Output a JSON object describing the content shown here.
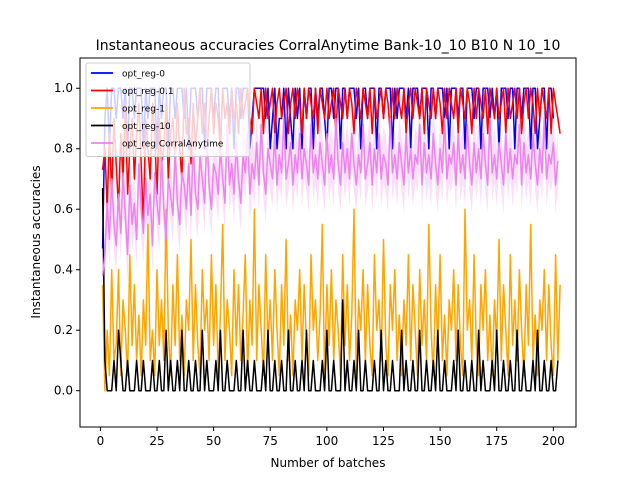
{
  "chart_data": {
    "type": "line",
    "title": "Instantaneous accuracies CorralAnytime Bank-10_10 B10 N 10_10",
    "xlabel": "Number of batches",
    "ylabel": "Instantaneous accuracies",
    "xlim": [
      -9,
      210
    ],
    "ylim": [
      -0.12,
      1.1
    ],
    "xticks": [
      0,
      25,
      50,
      75,
      100,
      125,
      150,
      175,
      200
    ],
    "yticks": [
      0.0,
      0.2,
      0.4,
      0.6,
      0.8,
      1.0
    ],
    "ytick_labels": [
      "0.0",
      "0.2",
      "0.4",
      "0.6",
      "0.8",
      "1.0"
    ],
    "grid": false,
    "legend_position": "top-left",
    "x_start": 1,
    "series": [
      {
        "name": "opt_reg-0",
        "color": "#0000ff",
        "values": [
          0.47,
          0.9,
          1.0,
          0.8,
          1.0,
          1.0,
          0.9,
          1.0,
          1.0,
          0.9,
          1.0,
          0.8,
          1.0,
          1.0,
          0.9,
          1.0,
          1.0,
          1.0,
          0.8,
          1.0,
          0.9,
          1.0,
          1.0,
          1.0,
          0.8,
          1.0,
          0.9,
          1.0,
          1.0,
          0.8,
          1.0,
          1.0,
          0.9,
          1.0,
          1.0,
          1.0,
          0.9,
          1.0,
          0.8,
          1.0,
          1.0,
          1.0,
          0.9,
          1.0,
          1.0,
          0.8,
          1.0,
          1.0,
          1.0,
          0.9,
          1.0,
          1.0,
          0.8,
          1.0,
          1.0,
          1.0,
          0.9,
          1.0,
          0.8,
          1.0,
          1.0,
          0.9,
          1.0,
          1.0,
          1.0,
          0.8,
          0.9,
          1.0,
          1.0,
          1.0,
          1.0,
          1.0,
          0.9,
          1.0,
          0.8,
          0.9,
          1.0,
          0.8,
          0.9,
          0.9,
          1.0,
          0.8,
          1.0,
          0.9,
          0.8,
          1.0,
          0.9,
          1.0,
          0.8,
          1.0,
          0.9,
          1.0,
          1.0,
          0.8,
          1.0,
          0.9,
          1.0,
          1.0,
          0.9,
          0.8,
          1.0,
          1.0,
          0.9,
          1.0,
          1.0,
          0.8,
          1.0,
          1.0,
          0.9,
          1.0,
          1.0,
          1.0,
          0.9,
          1.0,
          0.8,
          1.0,
          1.0,
          0.9,
          1.0,
          1.0,
          1.0,
          0.8,
          1.0,
          1.0,
          0.9,
          1.0,
          1.0,
          1.0,
          0.8,
          1.0,
          0.9,
          1.0,
          1.0,
          1.0,
          0.9,
          1.0,
          0.8,
          1.0,
          1.0,
          1.0,
          0.9,
          1.0,
          1.0,
          1.0,
          0.8,
          1.0,
          1.0,
          0.9,
          1.0,
          1.0,
          1.0,
          0.9,
          1.0,
          0.8,
          1.0,
          1.0,
          1.0,
          0.9,
          1.0,
          1.0,
          0.8,
          1.0,
          1.0,
          1.0,
          0.9,
          1.0,
          1.0,
          0.8,
          1.0,
          1.0,
          1.0,
          0.9,
          1.0,
          0.9,
          1.0,
          0.8,
          1.0,
          1.0,
          1.0,
          0.9,
          1.0,
          1.0,
          0.8,
          1.0,
          1.0,
          0.9,
          1.0,
          1.0,
          1.0,
          0.8,
          1.0,
          1.0,
          0.8,
          0.9,
          1.0,
          1.0,
          0.8,
          1.0,
          1.0,
          0.9
        ]
      },
      {
        "name": "opt_reg-0.1",
        "color": "#ff0000",
        "values": [
          0.73,
          0.8,
          0.6,
          0.85,
          0.65,
          0.9,
          0.75,
          0.6,
          0.85,
          0.7,
          0.95,
          0.65,
          0.8,
          0.9,
          0.7,
          0.85,
          0.95,
          0.75,
          0.55,
          0.9,
          0.8,
          0.7,
          0.95,
          0.85,
          0.65,
          0.9,
          0.75,
          0.8,
          0.95,
          0.7,
          0.85,
          0.9,
          0.75,
          0.95,
          0.8,
          0.7,
          1.0,
          0.85,
          0.9,
          0.75,
          0.95,
          0.8,
          0.9,
          1.0,
          0.85,
          0.95,
          0.8,
          0.9,
          1.0,
          0.85,
          0.95,
          0.9,
          0.8,
          1.0,
          0.9,
          0.95,
          0.85,
          1.0,
          0.9,
          0.95,
          0.85,
          1.0,
          0.9,
          0.95,
          1.0,
          0.9,
          0.85,
          1.0,
          0.95,
          0.9,
          1.0,
          0.85,
          1.0,
          0.9,
          0.95,
          1.0,
          0.85,
          0.95,
          1.0,
          0.9,
          0.95,
          1.0,
          0.85,
          0.95,
          1.0,
          0.9,
          1.0,
          0.95,
          0.85,
          1.0,
          0.9,
          1.0,
          0.95,
          0.9,
          1.0,
          0.85,
          1.0,
          0.95,
          0.9,
          1.0,
          0.9,
          0.95,
          1.0,
          0.85,
          1.0,
          0.95,
          0.9,
          1.0,
          0.9,
          1.0,
          0.95,
          0.85,
          1.0,
          0.95,
          0.9,
          1.0,
          0.95,
          0.9,
          1.0,
          0.85,
          1.0,
          0.9,
          0.95,
          1.0,
          0.9,
          1.0,
          0.95,
          0.85,
          1.0,
          0.9,
          1.0,
          0.95,
          0.9,
          1.0,
          0.85,
          0.95,
          1.0,
          0.9,
          1.0,
          0.95,
          0.9,
          1.0,
          0.85,
          1.0,
          0.95,
          0.9,
          1.0,
          0.9,
          1.0,
          0.95,
          0.85,
          1.0,
          0.9,
          1.0,
          0.95,
          0.9,
          1.0,
          0.85,
          1.0,
          0.95,
          0.9,
          1.0,
          0.95,
          0.85,
          1.0,
          0.9,
          1.0,
          0.95,
          0.9,
          1.0,
          0.85,
          1.0,
          0.95,
          0.9,
          1.0,
          0.9,
          0.95,
          1.0,
          0.85,
          1.0,
          0.9,
          0.95,
          1.0,
          0.9,
          1.0,
          0.85,
          0.95,
          1.0,
          0.9,
          1.0,
          0.95,
          0.85,
          1.0,
          0.9,
          1.0,
          0.95,
          0.9,
          1.0,
          0.85,
          1.0,
          0.95,
          0.9,
          0.85
        ]
      },
      {
        "name": "opt_reg-1",
        "color": "#ffa500",
        "values": [
          0.35,
          0.0,
          0.2,
          0.05,
          0.4,
          0.1,
          0.15,
          0.4,
          0.05,
          0.3,
          0.2,
          0.05,
          0.45,
          0.15,
          0.35,
          0.1,
          0.25,
          0.05,
          0.3,
          0.15,
          0.55,
          0.1,
          0.2,
          0.05,
          0.4,
          0.15,
          0.3,
          0.1,
          0.6,
          0.2,
          0.05,
          0.35,
          0.15,
          0.45,
          0.1,
          0.25,
          0.05,
          0.3,
          0.2,
          0.5,
          0.1,
          0.35,
          0.15,
          0.05,
          0.4,
          0.2,
          0.3,
          0.1,
          0.45,
          0.15,
          0.35,
          0.05,
          0.25,
          0.55,
          0.1,
          0.3,
          0.2,
          0.05,
          0.4,
          0.15,
          0.35,
          0.1,
          0.25,
          0.45,
          0.05,
          0.3,
          0.15,
          0.6,
          0.1,
          0.35,
          0.2,
          0.05,
          0.45,
          0.15,
          0.3,
          0.1,
          0.4,
          0.2,
          0.05,
          0.35,
          0.15,
          0.5,
          0.1,
          0.25,
          0.05,
          0.3,
          0.2,
          0.4,
          0.1,
          0.35,
          0.15,
          0.05,
          0.45,
          0.2,
          0.3,
          0.1,
          0.25,
          0.55,
          0.05,
          0.35,
          0.15,
          0.4,
          0.1,
          0.3,
          0.2,
          0.05,
          0.45,
          0.15,
          0.35,
          0.1,
          0.25,
          0.6,
          0.05,
          0.3,
          0.2,
          0.4,
          0.1,
          0.35,
          0.15,
          0.05,
          0.45,
          0.2,
          0.3,
          0.1,
          0.5,
          0.15,
          0.05,
          0.35,
          0.2,
          0.4,
          0.1,
          0.25,
          0.05,
          0.3,
          0.15,
          0.45,
          0.1,
          0.35,
          0.2,
          0.05,
          0.4,
          0.15,
          0.3,
          0.1,
          0.55,
          0.2,
          0.05,
          0.35,
          0.15,
          0.45,
          0.1,
          0.25,
          0.05,
          0.3,
          0.2,
          0.4,
          0.1,
          0.35,
          0.15,
          0.05,
          0.6,
          0.2,
          0.3,
          0.1,
          0.45,
          0.15,
          0.05,
          0.35,
          0.2,
          0.4,
          0.1,
          0.25,
          0.05,
          0.3,
          0.15,
          0.5,
          0.1,
          0.35,
          0.2,
          0.05,
          0.45,
          0.15,
          0.3,
          0.1,
          0.4,
          0.2,
          0.05,
          0.35,
          0.15,
          0.55,
          0.1,
          0.25,
          0.05,
          0.3,
          0.2,
          0.4,
          0.1,
          0.35,
          0.15,
          0.05,
          0.45,
          0.1,
          0.35
        ]
      },
      {
        "name": "opt_reg-10",
        "color": "#000000",
        "values": [
          0.67,
          0.1,
          0.0,
          0.0,
          0.0,
          0.1,
          0.0,
          0.2,
          0.1,
          0.0,
          0.0,
          0.1,
          0.0,
          0.0,
          0.0,
          0.1,
          0.0,
          0.0,
          0.1,
          0.0,
          0.0,
          0.0,
          0.1,
          0.0,
          0.0,
          0.1,
          0.0,
          0.0,
          0.2,
          0.0,
          0.1,
          0.0,
          0.0,
          0.1,
          0.0,
          0.2,
          0.0,
          0.0,
          0.1,
          0.0,
          0.0,
          0.1,
          0.0,
          0.0,
          0.2,
          0.0,
          0.1,
          0.0,
          0.0,
          0.0,
          0.1,
          0.0,
          0.2,
          0.0,
          0.0,
          0.1,
          0.0,
          0.0,
          0.0,
          0.1,
          0.0,
          0.0,
          0.2,
          0.0,
          0.1,
          0.0,
          0.0,
          0.1,
          0.0,
          0.0,
          0.0,
          0.1,
          0.0,
          0.2,
          0.0,
          0.0,
          0.1,
          0.0,
          0.0,
          0.1,
          0.0,
          0.0,
          0.2,
          0.0,
          0.0,
          0.1,
          0.0,
          0.0,
          0.1,
          0.0,
          0.2,
          0.0,
          0.0,
          0.1,
          0.0,
          0.0,
          0.0,
          0.1,
          0.0,
          0.2,
          0.0,
          0.0,
          0.1,
          0.0,
          0.0,
          0.0,
          0.3,
          0.0,
          0.1,
          0.0,
          0.0,
          0.1,
          0.0,
          0.2,
          0.0,
          0.0,
          0.1,
          0.0,
          0.0,
          0.0,
          0.1,
          0.0,
          0.0,
          0.2,
          0.0,
          0.1,
          0.0,
          0.0,
          0.1,
          0.0,
          0.0,
          0.0,
          0.2,
          0.0,
          0.1,
          0.0,
          0.0,
          0.1,
          0.0,
          0.0,
          0.2,
          0.0,
          0.0,
          0.1,
          0.0,
          0.0,
          0.1,
          0.0,
          0.2,
          0.0,
          0.0,
          0.1,
          0.0,
          0.0,
          0.0,
          0.1,
          0.0,
          0.2,
          0.0,
          0.0,
          0.1,
          0.0,
          0.0,
          0.1,
          0.0,
          0.0,
          0.2,
          0.0,
          0.1,
          0.0,
          0.0,
          0.0,
          0.1,
          0.0,
          0.2,
          0.0,
          0.0,
          0.1,
          0.0,
          0.0,
          0.1,
          0.0,
          0.0,
          0.2,
          0.0,
          0.0,
          0.1,
          0.0,
          0.0,
          0.0,
          0.1,
          0.0,
          0.2,
          0.0,
          0.0,
          0.1,
          0.0,
          0.0,
          0.1,
          0.0,
          0.0,
          0.1
        ]
      },
      {
        "name": "opt_reg CorralAnytime",
        "color": "#ee82ee",
        "band_color": "#f9d2f6",
        "values": [
          0.38,
          0.45,
          0.62,
          0.5,
          0.7,
          0.55,
          0.48,
          0.65,
          0.52,
          0.72,
          0.58,
          0.45,
          0.68,
          0.55,
          0.62,
          0.5,
          0.75,
          0.6,
          0.52,
          0.7,
          0.58,
          0.65,
          0.48,
          0.72,
          0.62,
          0.55,
          0.78,
          0.6,
          0.5,
          0.7,
          0.65,
          0.58,
          0.8,
          0.62,
          0.55,
          0.72,
          0.68,
          0.6,
          0.75,
          0.58,
          0.82,
          0.65,
          0.6,
          0.78,
          0.7,
          0.62,
          0.85,
          0.68,
          0.6,
          0.75,
          0.72,
          0.65,
          0.8,
          0.7,
          0.62,
          0.88,
          0.68,
          0.75,
          0.65,
          0.82,
          0.7,
          0.62,
          0.78,
          0.72,
          0.85,
          0.65,
          0.75,
          0.7,
          0.82,
          0.68,
          0.88,
          0.72,
          0.65,
          0.8,
          0.75,
          0.7,
          0.85,
          0.68,
          0.78,
          0.72,
          0.9,
          0.7,
          0.75,
          0.82,
          0.68,
          0.78,
          0.72,
          0.85,
          0.7,
          0.8,
          0.75,
          0.68,
          0.88,
          0.72,
          0.78,
          0.7,
          0.82,
          0.75,
          0.68,
          0.85,
          0.72,
          0.78,
          0.7,
          0.9,
          0.75,
          0.68,
          0.82,
          0.72,
          0.8,
          0.7,
          0.85,
          0.75,
          0.68,
          0.78,
          0.72,
          0.88,
          0.7,
          0.75,
          0.82,
          0.68,
          0.8,
          0.72,
          0.85,
          0.7,
          0.78,
          0.75,
          0.68,
          0.9,
          0.72,
          0.78,
          0.7,
          0.82,
          0.75,
          0.68,
          0.85,
          0.72,
          0.8,
          0.7,
          0.78,
          0.75,
          0.88,
          0.68,
          0.82,
          0.72,
          0.78,
          0.7,
          0.85,
          0.75,
          0.68,
          0.8,
          0.72,
          0.9,
          0.7,
          0.78,
          0.75,
          0.82,
          0.68,
          0.85,
          0.72,
          0.78,
          0.7,
          0.88,
          0.75,
          0.68,
          0.82,
          0.72,
          0.8,
          0.7,
          0.85,
          0.75,
          0.68,
          0.9,
          0.72,
          0.78,
          0.7,
          0.82,
          0.75,
          0.68,
          0.85,
          0.72,
          0.8,
          0.7,
          0.78,
          0.75,
          0.88,
          0.68,
          0.82,
          0.72,
          0.78,
          0.7,
          0.85,
          0.75,
          0.68,
          0.8,
          0.72,
          0.9,
          0.7,
          0.78,
          0.75,
          0.82,
          0.68,
          0.76
        ]
      }
    ]
  }
}
